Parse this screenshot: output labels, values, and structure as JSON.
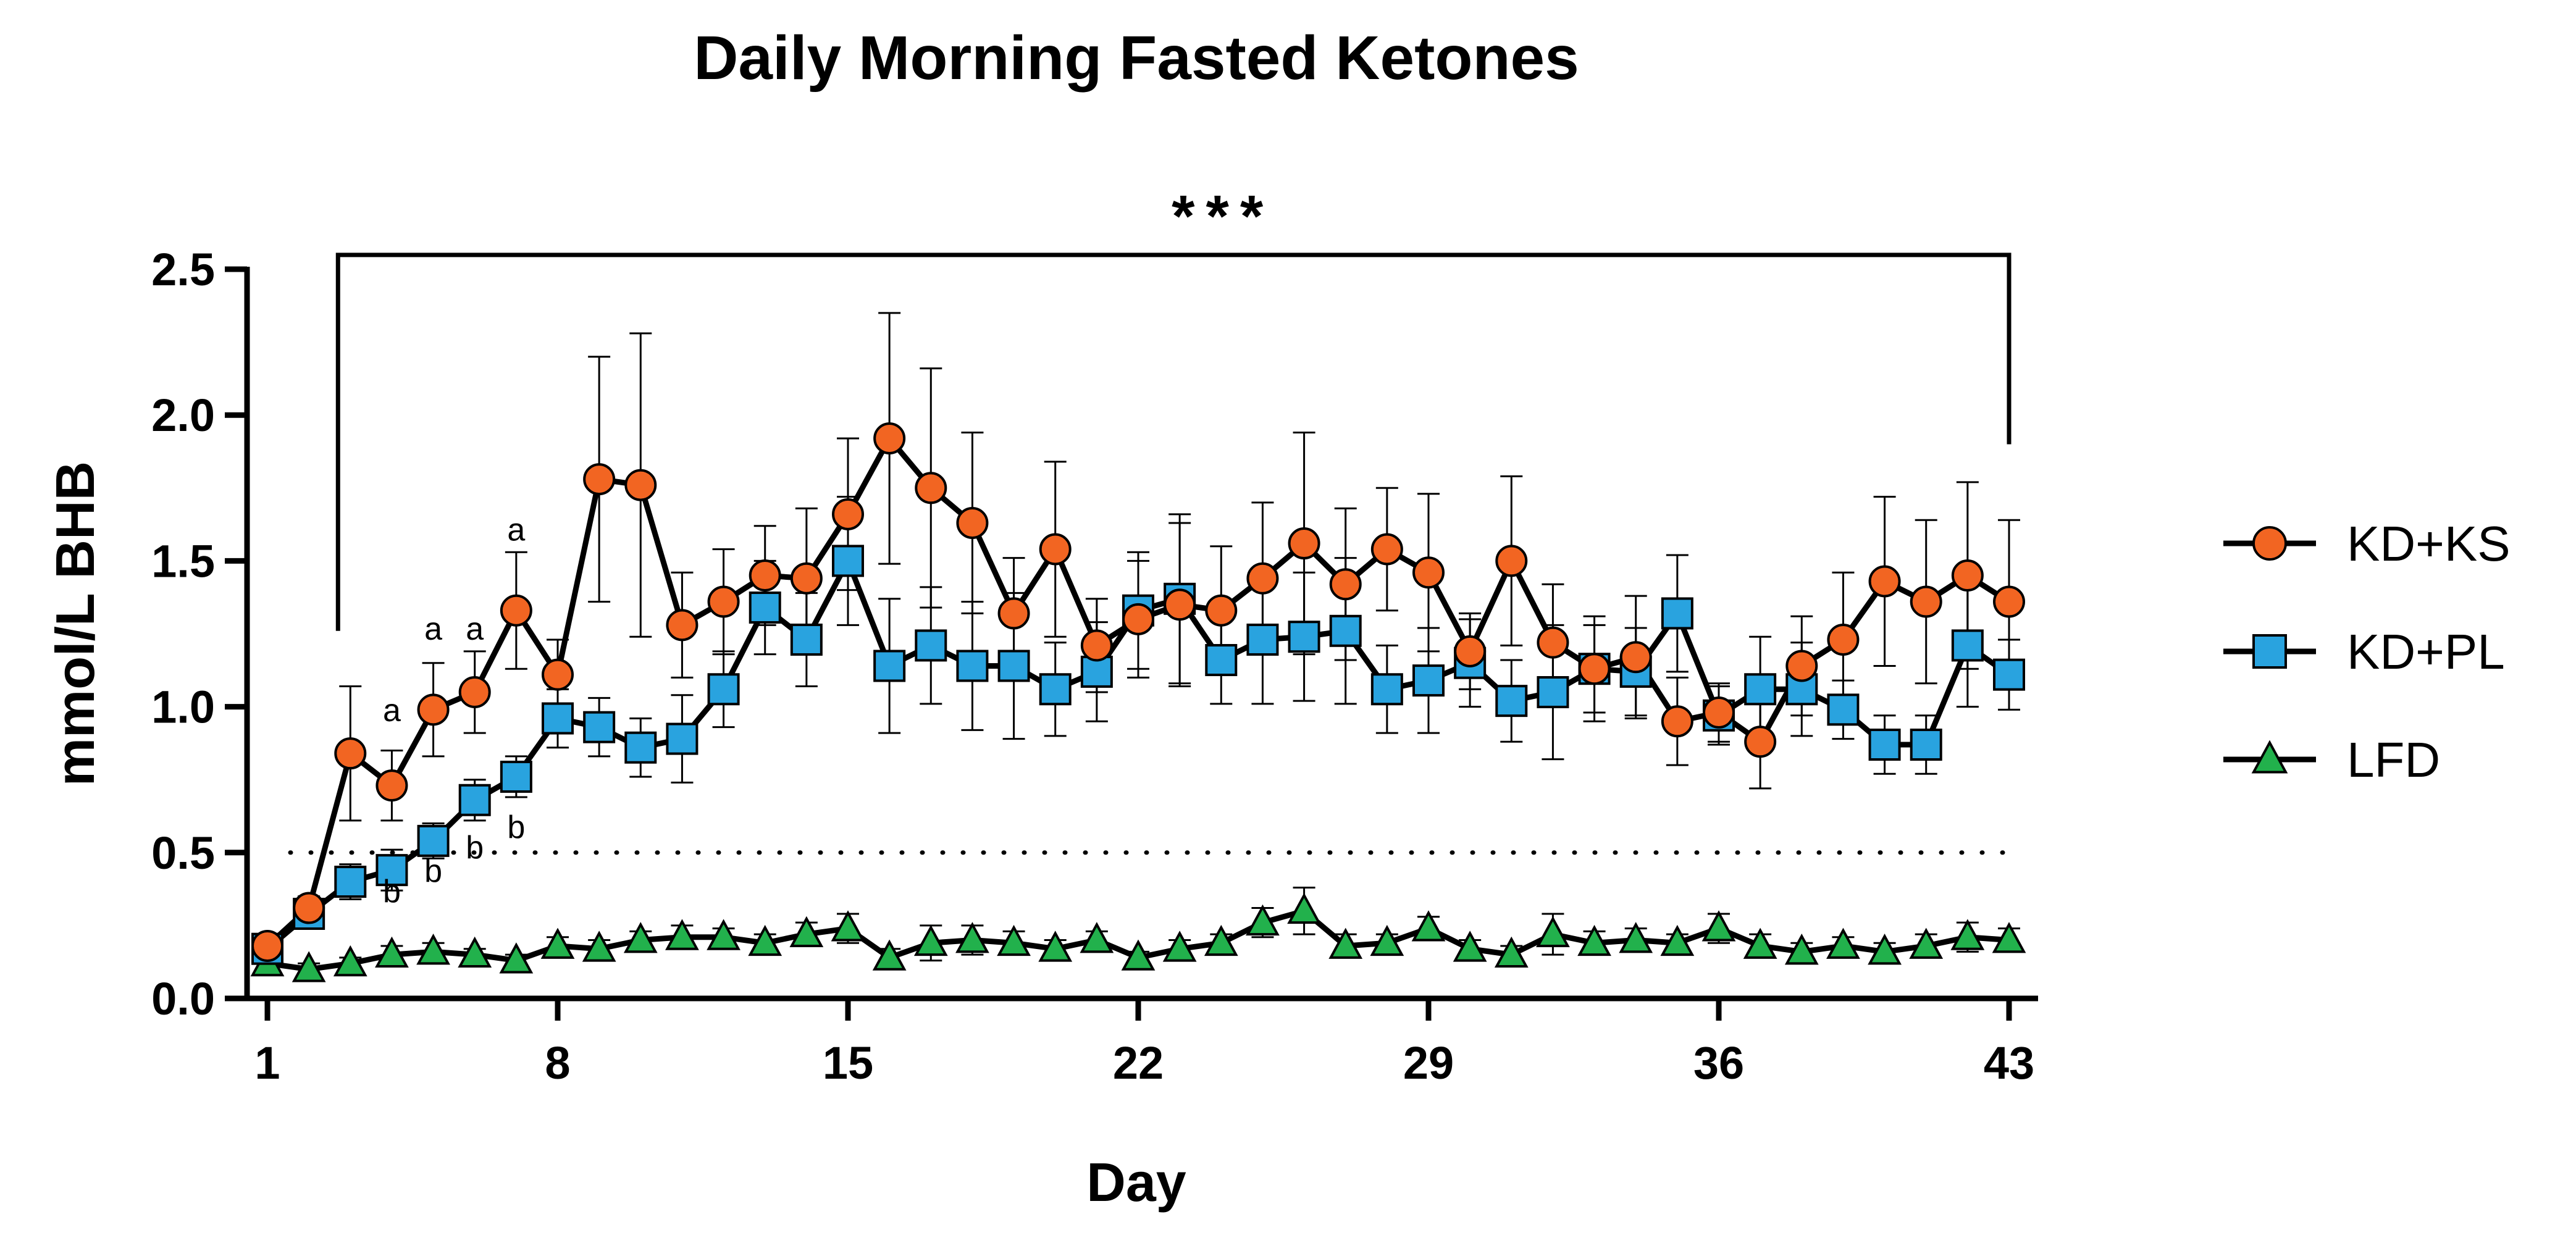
{
  "chart_data": {
    "type": "line",
    "title": "Daily Morning Fasted Ketones",
    "xlabel": "Day",
    "ylabel": "mmol/L BHB",
    "xlim": [
      1,
      43
    ],
    "ylim": [
      0,
      2.5
    ],
    "x_ticks": [
      "1",
      "8",
      "15",
      "22",
      "29",
      "36",
      "43"
    ],
    "y_ticks": [
      "0.0",
      "0.5",
      "1.0",
      "1.5",
      "2.0",
      "2.5"
    ],
    "x": [
      1,
      2,
      3,
      4,
      5,
      6,
      7,
      8,
      9,
      10,
      11,
      12,
      13,
      14,
      15,
      16,
      17,
      18,
      19,
      20,
      21,
      22,
      23,
      24,
      25,
      26,
      27,
      28,
      29,
      30,
      31,
      32,
      33,
      34,
      35,
      36,
      37,
      38,
      39,
      40,
      41,
      42,
      43
    ],
    "reference_line": {
      "y": 0.5,
      "style": "dotted"
    },
    "significance": {
      "label": "***",
      "x_start": 3,
      "x_end": 43,
      "y": 2.57
    },
    "legend": {
      "position": "right"
    },
    "series": [
      {
        "name": "KD+KS",
        "color": "#f26522",
        "marker": "circle",
        "values": [
          0.18,
          0.31,
          0.84,
          0.73,
          0.99,
          1.05,
          1.33,
          1.11,
          1.78,
          1.76,
          1.28,
          1.36,
          1.45,
          1.44,
          1.66,
          1.92,
          1.75,
          1.63,
          1.32,
          1.54,
          1.21,
          1.3,
          1.35,
          1.33,
          1.44,
          1.56,
          1.42,
          1.54,
          1.46,
          1.19,
          1.5,
          1.22,
          1.13,
          1.17,
          0.95,
          0.98,
          0.88,
          1.14,
          1.23,
          1.43,
          1.36,
          1.45,
          1.36
        ],
        "errors": [
          0.03,
          0.04,
          0.23,
          0.12,
          0.16,
          0.14,
          0.2,
          0.12,
          0.42,
          0.52,
          0.18,
          0.18,
          0.17,
          0.24,
          0.26,
          0.43,
          0.41,
          0.31,
          0.19,
          0.3,
          0.16,
          0.2,
          0.28,
          0.22,
          0.26,
          0.38,
          0.26,
          0.21,
          0.27,
          0.13,
          0.29,
          0.2,
          0.18,
          0.21,
          0.15,
          0.1,
          0.16,
          0.17,
          0.23,
          0.29,
          0.28,
          0.32,
          0.28
        ]
      },
      {
        "name": "KD+PL",
        "color": "#29a3df",
        "marker": "square",
        "values": [
          0.17,
          0.29,
          0.4,
          0.44,
          0.54,
          0.68,
          0.76,
          0.96,
          0.93,
          0.86,
          0.89,
          1.06,
          1.34,
          1.23,
          1.5,
          1.14,
          1.21,
          1.14,
          1.14,
          1.06,
          1.12,
          1.33,
          1.37,
          1.16,
          1.23,
          1.24,
          1.26,
          1.06,
          1.09,
          1.15,
          1.02,
          1.05,
          1.13,
          1.12,
          1.32,
          0.97,
          1.06,
          1.06,
          0.99,
          0.87,
          0.87,
          1.21,
          1.11
        ]
      },
      {
        "name": "LFD",
        "color": "#22b14c",
        "marker": "triangle",
        "values": [
          0.12,
          0.1,
          0.12,
          0.15,
          0.16,
          0.15,
          0.13,
          0.18,
          0.17,
          0.2,
          0.21,
          0.21,
          0.19,
          0.22,
          0.24,
          0.14,
          0.19,
          0.2,
          0.19,
          0.17,
          0.2,
          0.14,
          0.17,
          0.19,
          0.26,
          0.3,
          0.18,
          0.19,
          0.24,
          0.17,
          0.15,
          0.22,
          0.19,
          0.2,
          0.19,
          0.24,
          0.18,
          0.16,
          0.18,
          0.16,
          0.18,
          0.21,
          0.2
        ]
      }
    ],
    "pl_errors": [
      0.03,
      0.04,
      0.06,
      0.07,
      0.06,
      0.07,
      0.07,
      0.1,
      0.1,
      0.1,
      0.15,
      0.13,
      0.16,
      0.16,
      0.22,
      0.23,
      0.2,
      0.22,
      0.25,
      0.16,
      0.17,
      0.2,
      0.29,
      0.15,
      0.22,
      0.22,
      0.25,
      0.15,
      0.18,
      0.15,
      0.14,
      0.23,
      0.15,
      0.15,
      0.2,
      0.1,
      0.18,
      0.16,
      0.1,
      0.1,
      0.1,
      0.21,
      0.12
    ],
    "lfd_errors": [
      0.02,
      0.02,
      0.02,
      0.03,
      0.03,
      0.02,
      0.02,
      0.03,
      0.03,
      0.03,
      0.04,
      0.03,
      0.03,
      0.04,
      0.05,
      0.03,
      0.06,
      0.05,
      0.04,
      0.03,
      0.03,
      0.02,
      0.03,
      0.03,
      0.05,
      0.08,
      0.04,
      0.03,
      0.04,
      0.03,
      0.03,
      0.07,
      0.04,
      0.04,
      0.03,
      0.05,
      0.04,
      0.03,
      0.03,
      0.03,
      0.04,
      0.05,
      0.04
    ],
    "annotations": [
      {
        "text": "a",
        "x": 4,
        "y": 0.95
      },
      {
        "text": "a",
        "x": 5,
        "y": 1.23
      },
      {
        "text": "a",
        "x": 6,
        "y": 1.23
      },
      {
        "text": "a",
        "x": 7,
        "y": 1.57
      },
      {
        "text": "b",
        "x": 4,
        "y": 0.33
      },
      {
        "text": "b",
        "x": 5,
        "y": 0.4
      },
      {
        "text": "b",
        "x": 6,
        "y": 0.48
      },
      {
        "text": "b",
        "x": 7,
        "y": 0.55
      }
    ]
  }
}
